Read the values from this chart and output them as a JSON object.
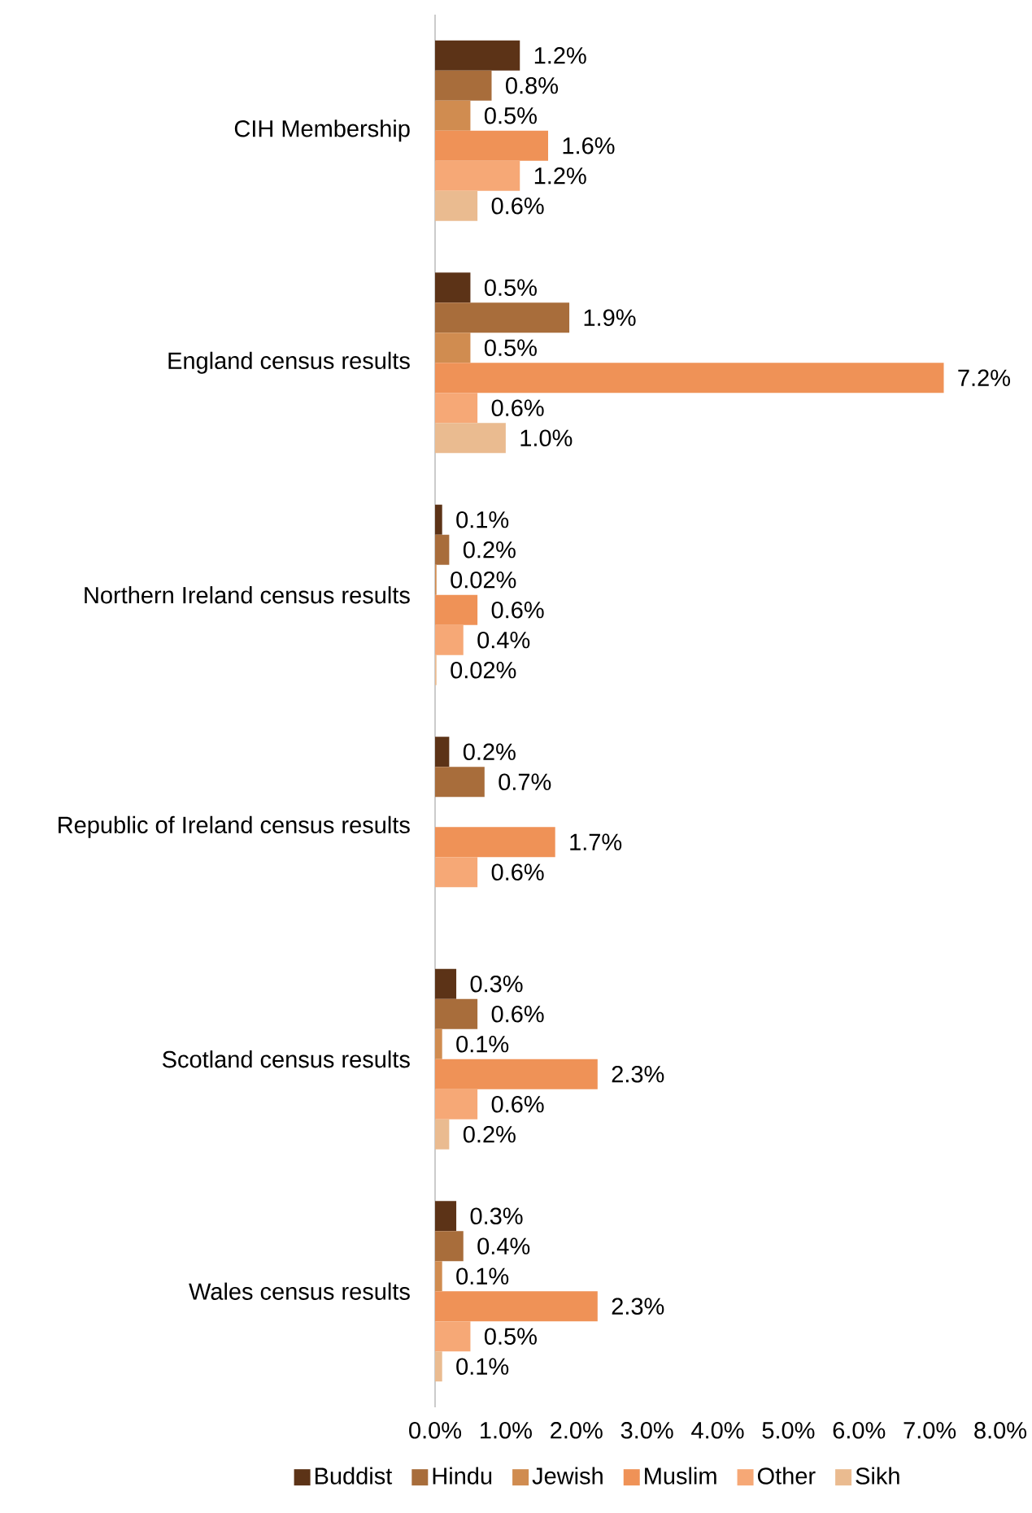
{
  "chart_data": {
    "type": "bar",
    "orientation": "horizontal",
    "categories": [
      "CIH Membership",
      "England census results",
      "Northern Ireland census results",
      "Republic of  Ireland census results",
      "Scotland census results",
      "Wales census results"
    ],
    "series": [
      {
        "name": "Buddist",
        "color": "#5c3317",
        "values": [
          1.2,
          0.5,
          0.1,
          0.2,
          0.3,
          0.3
        ],
        "value_labels": [
          "1.2%",
          "0.5%",
          "0.1%",
          "0.2%",
          "0.3%",
          "0.3%"
        ]
      },
      {
        "name": "Hindu",
        "color": "#a86d3b",
        "values": [
          0.8,
          1.9,
          0.2,
          0.7,
          0.6,
          0.4
        ],
        "value_labels": [
          "0.8%",
          "1.9%",
          "0.2%",
          "0.7%",
          "0.6%",
          "0.4%"
        ]
      },
      {
        "name": "Jewish",
        "color": "#d08c50",
        "values": [
          0.5,
          0.5,
          0.02,
          null,
          0.1,
          0.1
        ],
        "value_labels": [
          "0.5%",
          "0.5%",
          "0.02%",
          null,
          "0.1%",
          "0.1%"
        ]
      },
      {
        "name": "Muslim",
        "color": "#ef9257",
        "values": [
          1.6,
          7.2,
          0.6,
          1.7,
          2.3,
          2.3
        ],
        "value_labels": [
          "1.6%",
          "7.2%",
          "0.6%",
          "1.7%",
          "2.3%",
          "2.3%"
        ]
      },
      {
        "name": "Other",
        "color": "#f6a876",
        "values": [
          1.2,
          0.6,
          0.4,
          0.6,
          0.6,
          0.5
        ],
        "value_labels": [
          "1.2%",
          "0.6%",
          "0.4%",
          "0.6%",
          "0.6%",
          "0.5%"
        ]
      },
      {
        "name": "Sikh",
        "color": "#eabb90",
        "values": [
          0.6,
          1.0,
          0.02,
          null,
          0.2,
          0.1
        ],
        "value_labels": [
          "0.6%",
          "1.0%",
          "0.02%",
          null,
          "0.2%",
          "0.1%"
        ]
      }
    ],
    "xlim": [
      0,
      8
    ],
    "xticks": [
      {
        "value": 0,
        "label": "0.0%"
      },
      {
        "value": 1,
        "label": "1.0%"
      },
      {
        "value": 2,
        "label": "2.0%"
      },
      {
        "value": 3,
        "label": "3.0%"
      },
      {
        "value": 4,
        "label": "4.0%"
      },
      {
        "value": 5,
        "label": "5.0%"
      },
      {
        "value": 6,
        "label": "6.0%"
      },
      {
        "value": 7,
        "label": "7.0%"
      },
      {
        "value": 8,
        "label": "8.0%"
      }
    ],
    "grid": false,
    "legend": "bottom"
  }
}
